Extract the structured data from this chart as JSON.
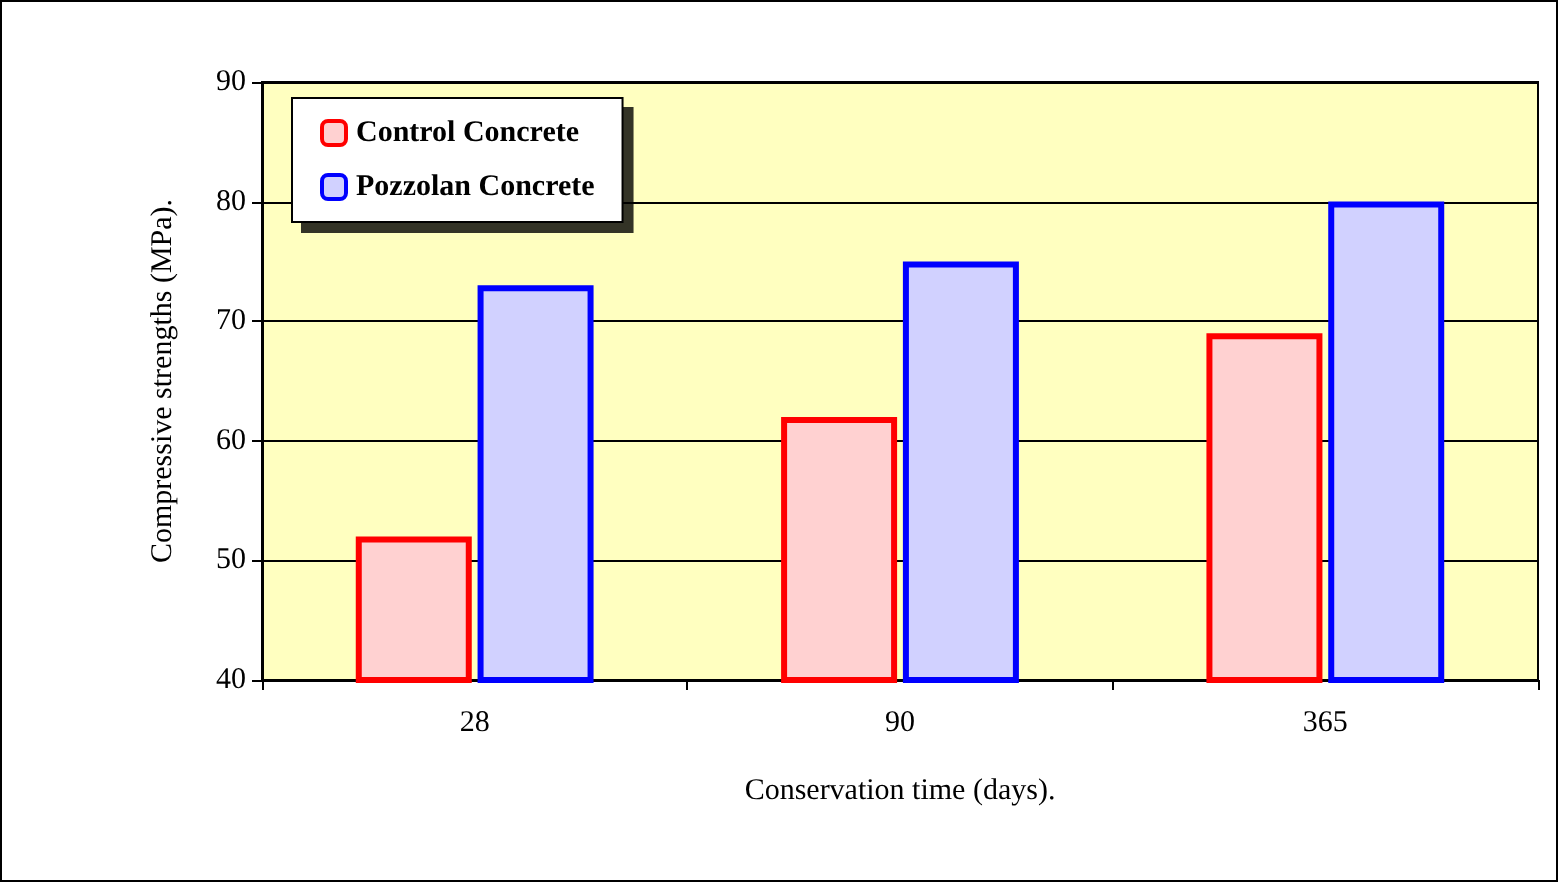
{
  "chart_data": {
    "type": "bar",
    "xlabel": "Conservation time (days).",
    "ylabel": "Compressive strengths (MPa).",
    "categories": [
      "28",
      "90",
      "365"
    ],
    "series": [
      {
        "name": "Control Concrete",
        "color": "#ff0000",
        "values": [
          52,
          62,
          69
        ]
      },
      {
        "name": "Pozzolan Concrete",
        "color": "#0000ff",
        "values": [
          73,
          75,
          80
        ]
      }
    ],
    "ylim": [
      40,
      90
    ],
    "yticks": [
      40,
      50,
      60,
      70,
      80,
      90
    ],
    "grid": "y",
    "legend": "top left"
  }
}
